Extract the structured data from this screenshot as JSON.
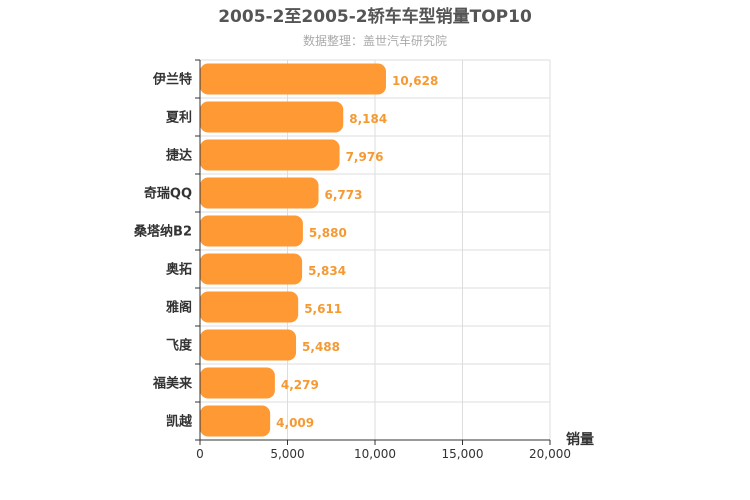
{
  "chart_data": {
    "type": "bar",
    "orientation": "horizontal",
    "title": "2005-2至2005-2轿车车型销量TOP10",
    "subtitle": "数据整理：盖世汽车研究院",
    "xlabel": "销量",
    "ylabel": "",
    "xlim": [
      0,
      20000
    ],
    "x_ticks": [
      0,
      5000,
      10000,
      15000,
      20000
    ],
    "x_tick_labels": [
      "0",
      "5,000",
      "10,000",
      "15,000",
      "20,000"
    ],
    "grid": true,
    "bar_color": "#ff9933",
    "label_color": "#f59a33",
    "categories": [
      "伊兰特",
      "夏利",
      "捷达",
      "奇瑞QQ",
      "桑塔纳B2",
      "奥拓",
      "雅阁",
      "飞度",
      "福美来",
      "凯越"
    ],
    "values": [
      10628,
      8184,
      7976,
      6773,
      5880,
      5834,
      5611,
      5488,
      4279,
      4009
    ],
    "value_labels": [
      "10,628",
      "8,184",
      "7,976",
      "6,773",
      "5,880",
      "5,834",
      "5,611",
      "5,488",
      "4,279",
      "4,009"
    ]
  }
}
